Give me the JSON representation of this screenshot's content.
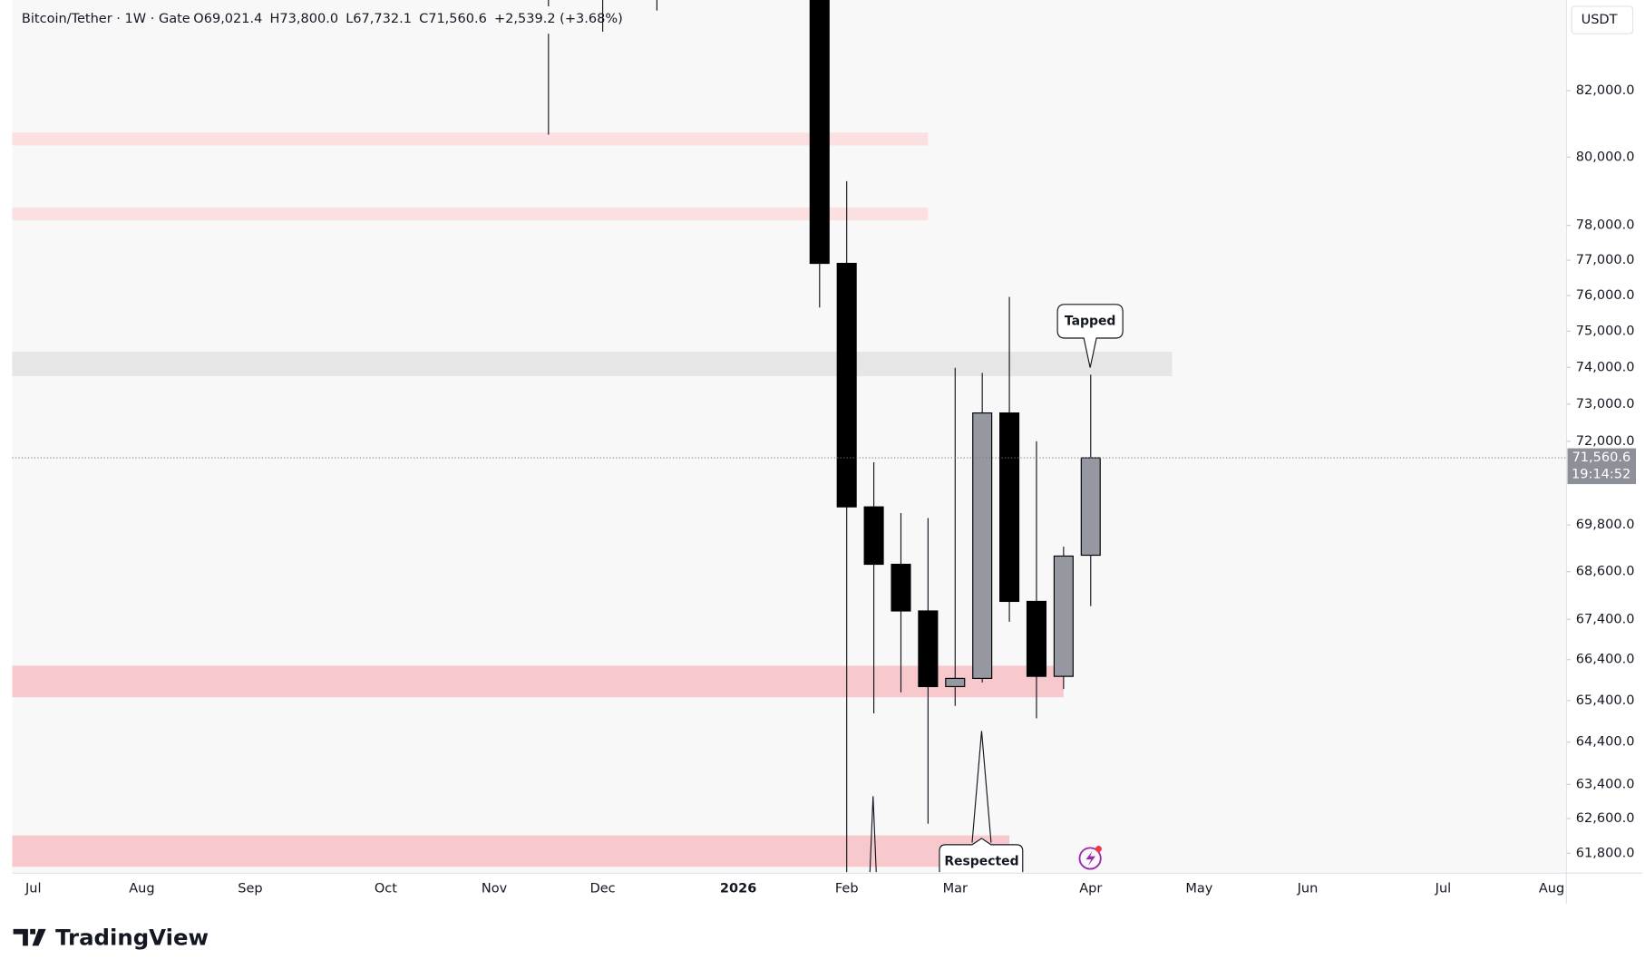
{
  "chart_data": {
    "type": "candlestick",
    "title": "Bitcoin/Tether · 1W · Gate",
    "ohlc_text": [
      "O69,021.4",
      "H73,800.0",
      "L67,732.1",
      "C71,560.6",
      "+2,539.2 (+3.68%)"
    ],
    "currency": "USDT",
    "last_price_label": "71,560.6",
    "countdown": "19:14:52",
    "brand": "TradingView",
    "log_scale": true,
    "up_color": "#9598a1",
    "down_color": "#000000",
    "categories": [
      "Jul",
      null,
      null,
      null,
      "Aug",
      null,
      null,
      null,
      "Sep",
      null,
      null,
      null,
      null,
      "Oct",
      null,
      null,
      null,
      "Nov",
      null,
      null,
      null,
      "Dec",
      null,
      null,
      null,
      null,
      "2026",
      null,
      null,
      null,
      "Feb",
      null,
      null,
      null,
      "Mar",
      null,
      null,
      null,
      null,
      "Apr",
      null,
      null,
      null,
      "May",
      null,
      null,
      null,
      "Jun",
      null,
      null,
      null,
      null,
      "Jul",
      null,
      null,
      null,
      "Aug"
    ],
    "open": [
      null,
      null,
      null,
      null,
      null,
      null,
      null,
      null,
      null,
      null,
      null,
      null,
      null,
      null,
      null,
      null,
      null,
      null,
      null,
      null,
      null,
      null,
      null,
      null,
      null,
      null,
      null,
      null,
      null,
      null,
      76910,
      70270,
      68790,
      67610,
      65740,
      65940,
      72760,
      67850,
      65990,
      69021.4,
      null,
      null,
      null,
      null,
      null,
      null,
      null,
      null,
      null,
      null,
      null,
      null,
      null,
      null,
      null,
      null,
      null
    ],
    "high": [
      null,
      null,
      null,
      null,
      null,
      null,
      null,
      null,
      null,
      null,
      null,
      null,
      null,
      null,
      null,
      null,
      null,
      null,
      null,
      null,
      null,
      null,
      null,
      null,
      null,
      null,
      null,
      null,
      null,
      null,
      79290,
      71440,
      70110,
      69980,
      73990,
      73850,
      75960,
      72000,
      69240,
      73800,
      null,
      null,
      null,
      null,
      null,
      null,
      null,
      null,
      null,
      null,
      null,
      null,
      null,
      null,
      null,
      null,
      null
    ],
    "low": [
      null,
      null,
      null,
      null,
      null,
      null,
      null,
      null,
      null,
      null,
      null,
      null,
      null,
      null,
      null,
      null,
      null,
      null,
      null,
      80670,
      null,
      83810,
      null,
      84470,
      null,
      null,
      null,
      null,
      null,
      75660,
      null,
      65090,
      65600,
      62480,
      65270,
      65840,
      67340,
      64970,
      65680,
      67732.1,
      null,
      null,
      null,
      null,
      null,
      null,
      null,
      null,
      null,
      null,
      null,
      null,
      null,
      null,
      null,
      null,
      null
    ],
    "close": [
      null,
      null,
      null,
      null,
      null,
      null,
      null,
      null,
      null,
      null,
      null,
      null,
      null,
      null,
      null,
      null,
      null,
      null,
      null,
      null,
      null,
      null,
      null,
      null,
      null,
      null,
      null,
      null,
      null,
      76910,
      70270,
      68790,
      67610,
      65740,
      65940,
      72760,
      67850,
      65990,
      69000,
      71560.6,
      null,
      null,
      null,
      null,
      null,
      null,
      null,
      null,
      null,
      null,
      null,
      null,
      null,
      null,
      null,
      null,
      null
    ],
    "zones": [
      {
        "from": 80350,
        "to": 80730,
        "x_end": 33,
        "color": "#fbdfe1"
      },
      {
        "from": 78150,
        "to": 78520,
        "x_end": 33,
        "color": "#fbdfe1"
      },
      {
        "from": 73760,
        "to": 74430,
        "x_end": 42,
        "color": "#e6e6e6"
      },
      {
        "from": 65480,
        "to": 66250,
        "x_end": 38,
        "color": "#f7c9cd"
      },
      {
        "from": 61490,
        "to": 62210,
        "x_end": 36,
        "color": "#f7c9cd"
      }
    ],
    "annotations": [
      "Tapped",
      "Respected"
    ],
    "ylim": [
      61370,
      84800
    ],
    "yticks": [
      {
        "value": 82000,
        "label": "82,000.0"
      },
      {
        "value": 80000,
        "label": "80,000.0"
      },
      {
        "value": 78000,
        "label": "78,000.0"
      },
      {
        "value": 77000,
        "label": "77,000.0"
      },
      {
        "value": 76000,
        "label": "76,000.0"
      },
      {
        "value": 75000,
        "label": "75,000.0"
      },
      {
        "value": 74000,
        "label": "74,000.0"
      },
      {
        "value": 73000,
        "label": "73,000.0"
      },
      {
        "value": 72000,
        "label": "72,000.0"
      },
      {
        "value": 69800,
        "label": "69,800.0"
      },
      {
        "value": 68600,
        "label": "68,600.0"
      },
      {
        "value": 67400,
        "label": "67,400.0"
      },
      {
        "value": 66400,
        "label": "66,400.0"
      },
      {
        "value": 65400,
        "label": "65,400.0"
      },
      {
        "value": 64400,
        "label": "64,400.0"
      },
      {
        "value": 63400,
        "label": "63,400.0"
      },
      {
        "value": 62600,
        "label": "62,600.0"
      },
      {
        "value": 61800,
        "label": "61,800.0"
      }
    ]
  }
}
